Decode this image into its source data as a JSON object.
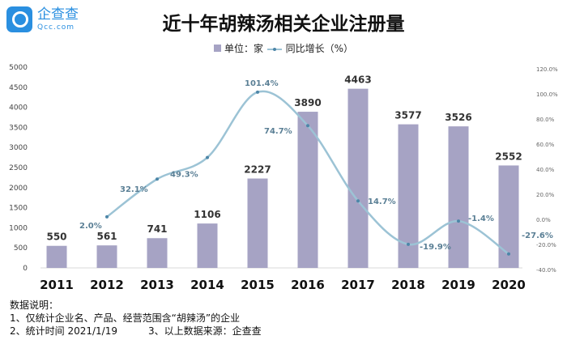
{
  "logo": {
    "name": "企查查",
    "domain": "Qcc.com"
  },
  "chart_data": {
    "type": "bar+line",
    "title": "近十年胡辣汤相关企业注册量",
    "categories": [
      "2011",
      "2012",
      "2013",
      "2014",
      "2015",
      "2016",
      "2017",
      "2018",
      "2019",
      "2020"
    ],
    "series": [
      {
        "name": "单位：家",
        "type": "bar",
        "axis": "left",
        "color": "#a6a3c4",
        "values": [
          550,
          561,
          741,
          1106,
          2227,
          3890,
          4463,
          3577,
          3526,
          2552
        ]
      },
      {
        "name": "同比增长（%）",
        "type": "line",
        "axis": "right",
        "color": "#9cc3d5",
        "values": [
          null,
          2.0,
          32.1,
          49.3,
          101.4,
          74.7,
          14.7,
          -19.9,
          -1.4,
          -27.6
        ]
      }
    ],
    "left_axis": {
      "ylim": [
        0,
        5000
      ],
      "ticks": [
        "0",
        "500",
        "1000",
        "1500",
        "2000",
        "2500",
        "3000",
        "3500",
        "4000",
        "4500",
        "5000"
      ]
    },
    "right_axis": {
      "ylim": [
        -40,
        120
      ],
      "ticks": [
        "-40.0%",
        "-20.0%",
        "0.0%",
        "20.0%",
        "40.0%",
        "60.0%",
        "80.0%",
        "100.0%",
        "120.0%"
      ]
    },
    "grid": false,
    "legend": "top-center"
  },
  "notes": {
    "heading": "数据说明：",
    "line1": "1、仅统计企业名、产品、经营范围含“胡辣汤”的企业",
    "line2a": "2、统计时间 2021/1/19",
    "line2b": "3、以上数据来源：企查查"
  }
}
